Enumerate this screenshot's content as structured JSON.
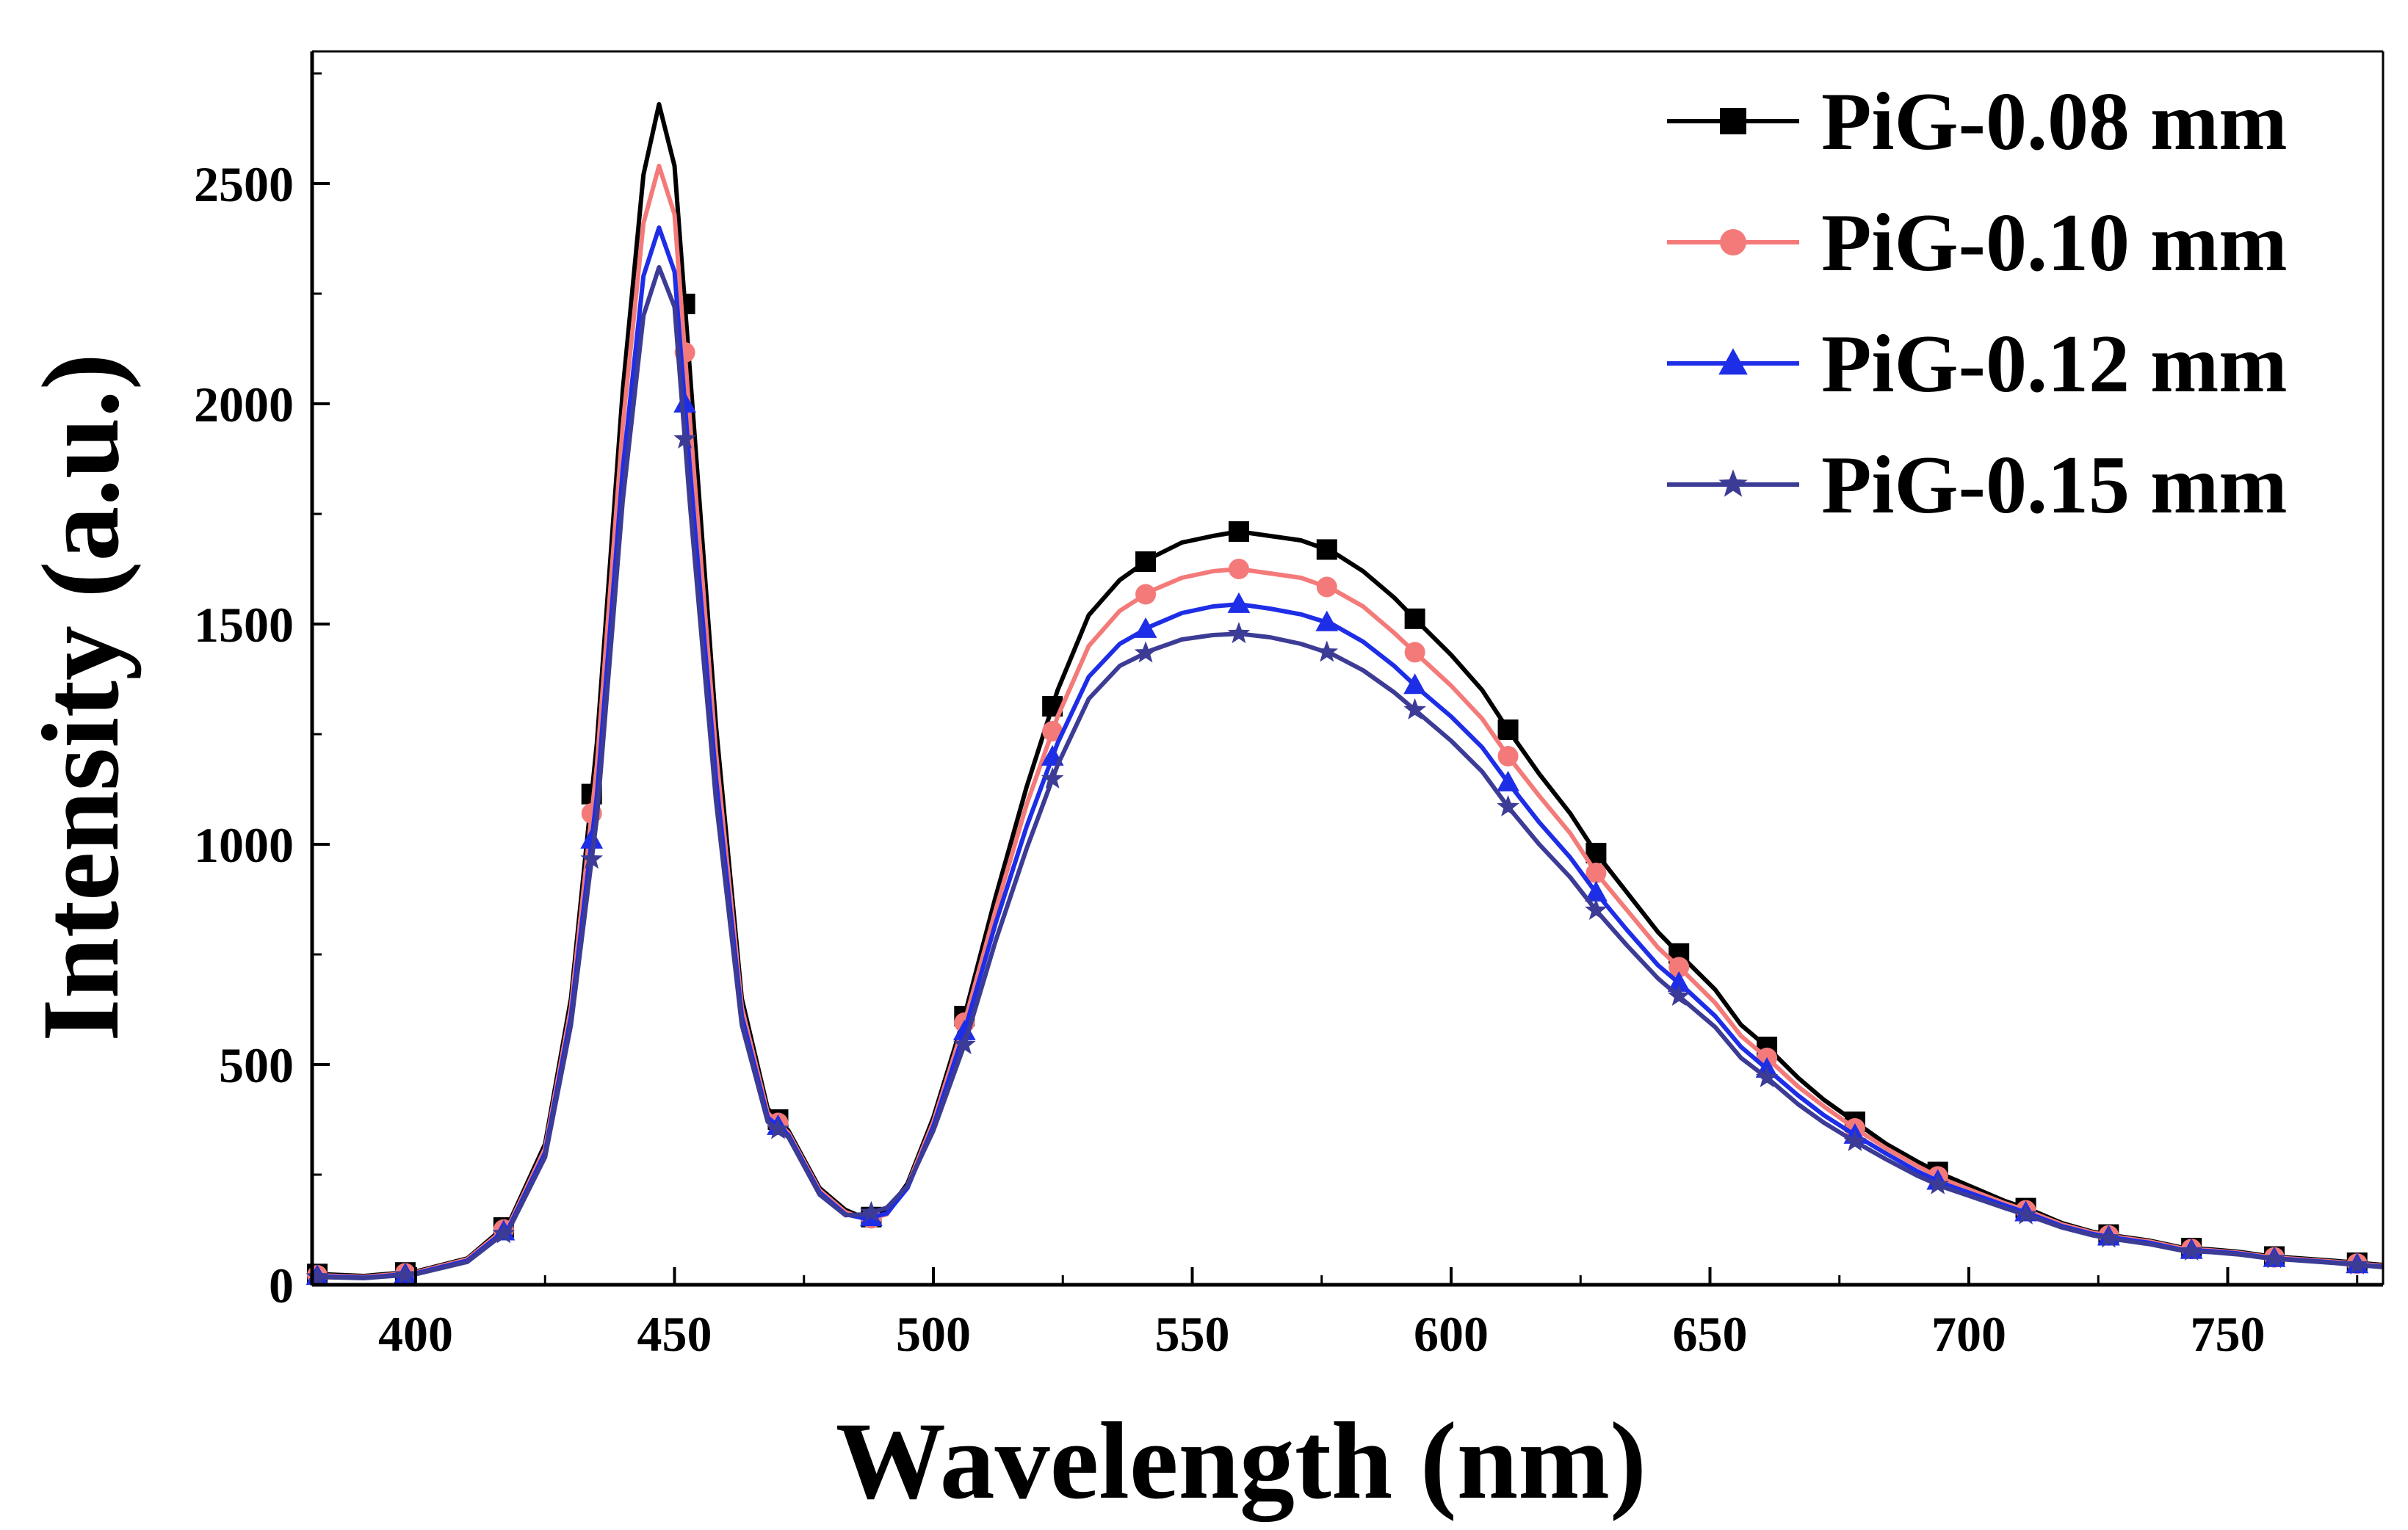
{
  "chart_data": {
    "type": "line",
    "title": "",
    "xlabel": "Wavelength (nm)",
    "ylabel": "Intensity (a.u.)",
    "xlim": [
      380,
      780
    ],
    "ylim": [
      0,
      2800
    ],
    "xticks": [
      400,
      450,
      500,
      550,
      600,
      650,
      700,
      750
    ],
    "yticks": [
      0,
      500,
      1000,
      1500,
      2000,
      2500
    ],
    "xtick_labels": [
      "400",
      "450",
      "500",
      "550",
      "600",
      "650",
      "700",
      "750"
    ],
    "ytick_labels": [
      "0",
      "500",
      "1000",
      "1500",
      "2000",
      "2500"
    ],
    "grid": false,
    "legend_position": "top-right",
    "series": [
      {
        "name": "PiG-0.08 mm",
        "color": "#000000",
        "marker": "square",
        "x": [
          380,
          390,
          400,
          410,
          418,
          425,
          430,
          435,
          440,
          444,
          447,
          450,
          453,
          458,
          463,
          468,
          472,
          478,
          483,
          487,
          491,
          495,
          500,
          506,
          512,
          518,
          524,
          530,
          536,
          542,
          548,
          554,
          559,
          565,
          571,
          577,
          583,
          589,
          594,
          600,
          606,
          611,
          617,
          623,
          628,
          634,
          640,
          645,
          651,
          656,
          661,
          667,
          672,
          678,
          684,
          690,
          695,
          701,
          707,
          712,
          718,
          724,
          729,
          735,
          741,
          747,
          752,
          758,
          764,
          770,
          775,
          780
        ],
        "y": [
          25,
          20,
          30,
          60,
          140,
          320,
          650,
          1230,
          2030,
          2520,
          2680,
          2540,
          2070,
          1270,
          650,
          400,
          350,
          220,
          170,
          150,
          165,
          230,
          380,
          610,
          880,
          1130,
          1350,
          1520,
          1600,
          1650,
          1685,
          1700,
          1710,
          1700,
          1690,
          1665,
          1620,
          1560,
          1500,
          1430,
          1350,
          1260,
          1160,
          1070,
          980,
          890,
          800,
          740,
          670,
          590,
          540,
          470,
          420,
          370,
          320,
          280,
          250,
          220,
          190,
          170,
          140,
          120,
          110,
          100,
          85,
          80,
          75,
          65,
          60,
          55,
          50,
          45
        ]
      },
      {
        "name": "PiG-0.10 mm",
        "color": "#f47a7a",
        "marker": "circle",
        "x": [
          380,
          390,
          400,
          410,
          418,
          425,
          430,
          435,
          440,
          444,
          447,
          450,
          453,
          458,
          463,
          468,
          472,
          478,
          483,
          487,
          491,
          495,
          500,
          506,
          512,
          518,
          524,
          530,
          536,
          542,
          548,
          554,
          559,
          565,
          571,
          577,
          583,
          589,
          594,
          600,
          606,
          611,
          617,
          623,
          628,
          634,
          640,
          645,
          651,
          656,
          661,
          667,
          672,
          678,
          684,
          690,
          695,
          701,
          707,
          712,
          718,
          724,
          729,
          735,
          741,
          747,
          752,
          758,
          764,
          770,
          775,
          780
        ],
        "y": [
          22,
          18,
          28,
          58,
          135,
          310,
          630,
          1180,
          1950,
          2410,
          2540,
          2430,
          1960,
          1210,
          630,
          390,
          345,
          215,
          165,
          148,
          160,
          225,
          370,
          595,
          850,
          1090,
          1290,
          1450,
          1530,
          1575,
          1605,
          1620,
          1625,
          1615,
          1605,
          1580,
          1540,
          1480,
          1425,
          1360,
          1285,
          1200,
          1110,
          1025,
          935,
          850,
          765,
          710,
          640,
          565,
          515,
          450,
          405,
          355,
          310,
          270,
          240,
          212,
          185,
          165,
          137,
          118,
          108,
          98,
          83,
          78,
          73,
          63,
          58,
          53,
          48,
          43
        ]
      },
      {
        "name": "PiG-0.12 mm",
        "color": "#1e2ee6",
        "marker": "triangle",
        "x": [
          380,
          390,
          400,
          410,
          418,
          425,
          430,
          435,
          440,
          444,
          447,
          450,
          453,
          458,
          463,
          468,
          472,
          478,
          483,
          487,
          491,
          495,
          500,
          506,
          512,
          518,
          524,
          530,
          536,
          542,
          548,
          554,
          559,
          565,
          571,
          577,
          583,
          589,
          594,
          600,
          606,
          611,
          617,
          623,
          628,
          634,
          640,
          645,
          651,
          656,
          661,
          667,
          672,
          678,
          684,
          690,
          695,
          701,
          707,
          712,
          718,
          724,
          729,
          735,
          741,
          747,
          752,
          758,
          764,
          770,
          775,
          780
        ],
        "y": [
          20,
          16,
          26,
          55,
          130,
          300,
          610,
          1110,
          1850,
          2290,
          2400,
          2300,
          1850,
          1150,
          610,
          380,
          340,
          210,
          160,
          150,
          162,
          220,
          360,
          575,
          820,
          1040,
          1230,
          1380,
          1455,
          1495,
          1525,
          1540,
          1545,
          1535,
          1522,
          1500,
          1460,
          1405,
          1350,
          1290,
          1220,
          1140,
          1050,
          970,
          890,
          805,
          725,
          675,
          610,
          540,
          490,
          430,
          385,
          340,
          298,
          258,
          230,
          205,
          180,
          160,
          133,
          115,
          105,
          95,
          80,
          76,
          71,
          61,
          56,
          51,
          46,
          41
        ]
      },
      {
        "name": "PiG-0.15 mm",
        "color": "#3c3c96",
        "marker": "star",
        "x": [
          380,
          390,
          400,
          410,
          418,
          425,
          430,
          435,
          440,
          444,
          447,
          450,
          453,
          458,
          463,
          468,
          472,
          478,
          483,
          487,
          491,
          495,
          500,
          506,
          512,
          518,
          524,
          530,
          536,
          542,
          548,
          554,
          559,
          565,
          571,
          577,
          583,
          589,
          594,
          600,
          606,
          611,
          617,
          623,
          628,
          634,
          640,
          645,
          651,
          656,
          661,
          667,
          672,
          678,
          684,
          690,
          695,
          701,
          707,
          712,
          718,
          724,
          729,
          735,
          741,
          747,
          752,
          758,
          764,
          770,
          775,
          780
        ],
        "y": [
          18,
          15,
          24,
          52,
          125,
          290,
          590,
          1060,
          1780,
          2200,
          2310,
          2220,
          1770,
          1100,
          590,
          370,
          335,
          205,
          158,
          160,
          175,
          225,
          350,
          545,
          780,
          990,
          1180,
          1330,
          1405,
          1440,
          1465,
          1475,
          1478,
          1470,
          1455,
          1432,
          1395,
          1345,
          1295,
          1235,
          1165,
          1085,
          1000,
          925,
          850,
          770,
          695,
          645,
          585,
          515,
          470,
          410,
          368,
          325,
          285,
          248,
          222,
          198,
          174,
          155,
          130,
          112,
          102,
          92,
          78,
          74,
          69,
          60,
          55,
          50,
          45,
          40
        ]
      }
    ],
    "marker_x": [
      381,
      398,
      417,
      434,
      452,
      470,
      488,
      506,
      523,
      541,
      559,
      576,
      593,
      611,
      628,
      644,
      661,
      678,
      694,
      711,
      727,
      743,
      759,
      775
    ]
  }
}
